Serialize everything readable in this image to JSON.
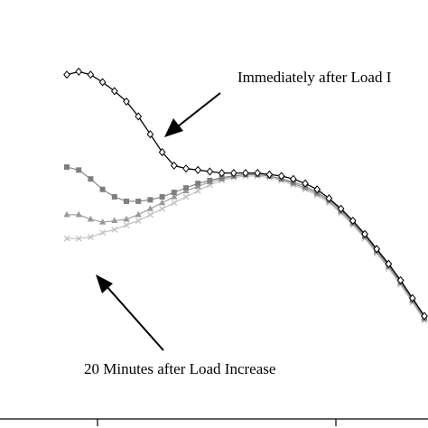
{
  "chart_data": {
    "type": "line",
    "title": "",
    "xlabel": "",
    "ylabel": "",
    "grid": false,
    "legend": "none",
    "x": [
      0,
      1,
      2,
      3,
      4,
      5,
      6,
      7,
      8,
      9,
      10,
      11,
      12,
      13,
      14,
      15,
      16,
      17,
      18,
      19,
      20,
      21,
      22,
      23,
      24,
      25,
      26,
      27,
      28,
      29,
      30
    ],
    "series": [
      {
        "marker": "diamond",
        "color": "#000000",
        "values": [
          82,
          84,
          82,
          77,
          71,
          64,
          54,
          42,
          30,
          21,
          19,
          18,
          17,
          16,
          16,
          16,
          16,
          15,
          14,
          12,
          9,
          5,
          -1,
          -8,
          -16,
          -25,
          -35,
          -45,
          -56,
          -68,
          -80
        ]
      },
      {
        "marker": "square",
        "color": "#7f7f7f",
        "values": [
          20,
          18,
          12,
          5,
          0,
          -3,
          -3,
          -2,
          0,
          3,
          6,
          9,
          11,
          13,
          14,
          15,
          15,
          14,
          12,
          10,
          7,
          3,
          -2,
          -9,
          -17,
          -26,
          -36,
          -46,
          -57,
          -69,
          -81
        ]
      },
      {
        "marker": "triangle",
        "color": "#999999",
        "values": [
          -12,
          -12,
          -15,
          -17,
          -16,
          -15,
          -12,
          -8,
          -4,
          0,
          4,
          7,
          10,
          12,
          14,
          15,
          15,
          14,
          12,
          9,
          6,
          2,
          -3,
          -10,
          -18,
          -27,
          -37,
          -47,
          -58,
          -70,
          -82
        ]
      },
      {
        "marker": "x",
        "color": "#c0c0c0",
        "values": [
          -28,
          -28,
          -27,
          -24,
          -22,
          -19,
          -16,
          -12,
          -8,
          -4,
          0,
          4,
          8,
          11,
          13,
          14,
          14,
          13,
          11,
          8,
          5,
          1,
          -4,
          -11,
          -19,
          -28,
          -38,
          -48,
          -59,
          -71,
          -83
        ]
      }
    ],
    "ylim": [
      -100,
      100
    ],
    "xlim": [
      0,
      30
    ],
    "annotations": [
      {
        "text": "Immediately after Load I"
      },
      {
        "text": "20 Minutes after Load Increase"
      }
    ]
  }
}
